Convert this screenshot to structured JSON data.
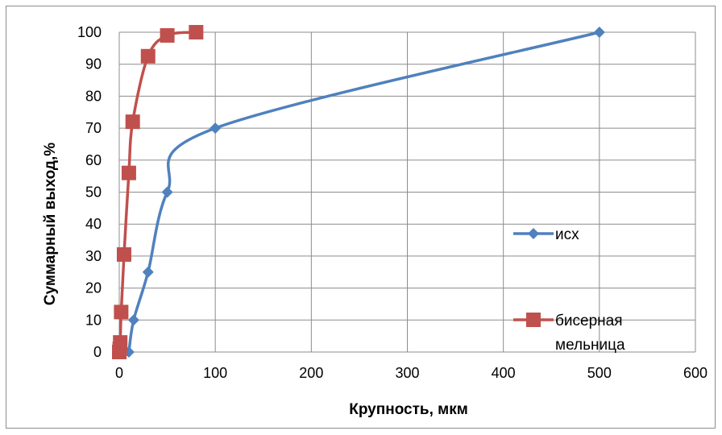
{
  "chart_data": {
    "type": "scatter",
    "title": "",
    "xlabel": "Крупность, мкм",
    "ylabel": "Суммарный выход,%",
    "xlim": [
      0,
      600
    ],
    "ylim": [
      0,
      100
    ],
    "x_ticks": [
      0,
      100,
      200,
      300,
      400,
      500,
      600
    ],
    "y_ticks": [
      0,
      10,
      20,
      30,
      40,
      50,
      60,
      70,
      80,
      90,
      100
    ],
    "grid": true,
    "legend_position": "right",
    "series": [
      {
        "name": "исх",
        "color": "#4f81bd",
        "marker": "diamond",
        "x": [
          10,
          15,
          30,
          50,
          100,
          500
        ],
        "y": [
          0,
          10,
          25,
          50,
          70,
          100
        ]
      },
      {
        "name": "бисерная мельница",
        "legend_lines": [
          "бисерная",
          "мельница"
        ],
        "color": "#c0504d",
        "marker": "square",
        "x": [
          0,
          0.5,
          1,
          2,
          5,
          10,
          14,
          30,
          50,
          80
        ],
        "y": [
          0,
          1,
          3,
          12.5,
          30.5,
          56,
          72,
          92.5,
          99,
          100
        ]
      }
    ]
  }
}
